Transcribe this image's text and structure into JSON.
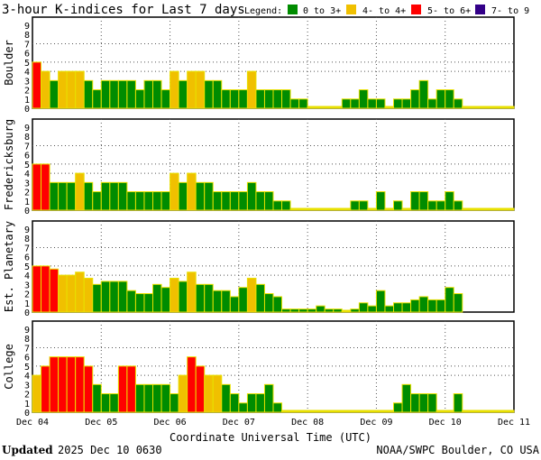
{
  "chart_data": {
    "type": "bar",
    "title": "3-hour K-indices for Last 7 days",
    "legend_label": "Legend:",
    "legend": [
      {
        "label": "0 to 3+",
        "color": "#008c00"
      },
      {
        "label": "4- to 4+",
        "color": "#f0c000"
      },
      {
        "label": "5- to 6+",
        "color": "#ff0000"
      },
      {
        "label": "7- to 9",
        "color": "#330088"
      }
    ],
    "xlabel": "Coordinate Universal Time (UTC)",
    "x_ticks": [
      "Dec 04",
      "Dec 05",
      "Dec 06",
      "Dec 07",
      "Dec 08",
      "Dec 09",
      "Dec 10",
      "Dec 11"
    ],
    "y_ticks": [
      "0",
      "1",
      "2",
      "3",
      "4",
      "5",
      "6",
      "7",
      "8",
      "9"
    ],
    "ylim": [
      0,
      9
    ],
    "gridlines_y": [
      4,
      5,
      7
    ],
    "bars_per_day": 8,
    "panels": [
      {
        "name": "Boulder",
        "values": [
          5,
          4,
          3,
          4,
          4,
          4,
          3,
          2,
          3,
          3,
          3,
          3,
          2,
          3,
          3,
          2,
          4,
          3,
          4,
          4,
          3,
          3,
          2,
          2,
          2,
          4,
          2,
          2,
          2,
          2,
          1,
          1,
          0,
          0,
          0,
          0,
          1,
          1,
          2,
          1,
          1,
          0,
          1,
          1,
          2,
          3,
          1,
          2,
          2,
          1,
          0,
          0,
          0,
          0,
          0,
          0
        ]
      },
      {
        "name": "Fredericksburg",
        "values": [
          5,
          5,
          3,
          3,
          3,
          4,
          3,
          2,
          3,
          3,
          3,
          2,
          2,
          2,
          2,
          2,
          4,
          3,
          4,
          3,
          3,
          2,
          2,
          2,
          2,
          3,
          2,
          2,
          1,
          1,
          0,
          0,
          0,
          0,
          0,
          0,
          0,
          1,
          1,
          0,
          2,
          0,
          1,
          0,
          2,
          2,
          1,
          1,
          2,
          1,
          0,
          0,
          0,
          0,
          0,
          0
        ]
      },
      {
        "name": "Est. Planetary",
        "values": [
          5,
          5,
          4.67,
          4,
          4,
          4.33,
          3.67,
          3,
          3.33,
          3.33,
          3.33,
          2.33,
          2,
          2,
          3,
          2.67,
          3.67,
          3.33,
          4.33,
          3,
          3,
          2.33,
          2.33,
          1.67,
          2.67,
          3.67,
          3,
          2,
          1.67,
          0.33,
          0.33,
          0.33,
          0.33,
          0.67,
          0.33,
          0.33,
          0,
          0.33,
          1,
          0.67,
          2.33,
          0.67,
          1,
          1,
          1.33,
          1.67,
          1.33,
          1.33,
          2.67,
          2,
          null,
          null,
          null,
          null,
          null,
          null
        ]
      },
      {
        "name": "College",
        "values": [
          4,
          5,
          6,
          6,
          6,
          6,
          5,
          3,
          2,
          2,
          5,
          5,
          3,
          3,
          3,
          3,
          2,
          4,
          6,
          5,
          4,
          4,
          3,
          2,
          1,
          2,
          2,
          3,
          1,
          0,
          0,
          0,
          0,
          0,
          0,
          0,
          0,
          0,
          0,
          0,
          0,
          0,
          1,
          3,
          2,
          2,
          2,
          0,
          0,
          2,
          0,
          0,
          0,
          0,
          0,
          0
        ]
      }
    ]
  },
  "footer": {
    "updated_label": "Updated",
    "updated_value": "2025 Dec 10 0630",
    "source": "NOAA/SWPC Boulder, CO USA"
  }
}
